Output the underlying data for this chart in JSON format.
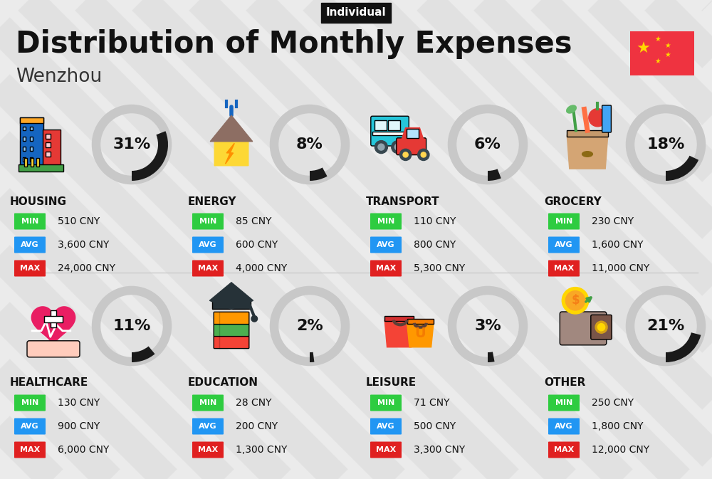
{
  "title": "Distribution of Monthly Expenses",
  "subtitle": "Individual",
  "city": "Wenzhou",
  "background_color": "#ebebeb",
  "categories": [
    {
      "name": "HOUSING",
      "percent": 31,
      "min": "510 CNY",
      "avg": "3,600 CNY",
      "max": "24,000 CNY",
      "row": 0,
      "col": 0
    },
    {
      "name": "ENERGY",
      "percent": 8,
      "min": "85 CNY",
      "avg": "600 CNY",
      "max": "4,000 CNY",
      "row": 0,
      "col": 1
    },
    {
      "name": "TRANSPORT",
      "percent": 6,
      "min": "110 CNY",
      "avg": "800 CNY",
      "max": "5,300 CNY",
      "row": 0,
      "col": 2
    },
    {
      "name": "GROCERY",
      "percent": 18,
      "min": "230 CNY",
      "avg": "1,600 CNY",
      "max": "11,000 CNY",
      "row": 0,
      "col": 3
    },
    {
      "name": "HEALTHCARE",
      "percent": 11,
      "min": "130 CNY",
      "avg": "900 CNY",
      "max": "6,000 CNY",
      "row": 1,
      "col": 0
    },
    {
      "name": "EDUCATION",
      "percent": 2,
      "min": "28 CNY",
      "avg": "200 CNY",
      "max": "1,300 CNY",
      "row": 1,
      "col": 1
    },
    {
      "name": "LEISURE",
      "percent": 3,
      "min": "71 CNY",
      "avg": "500 CNY",
      "max": "3,300 CNY",
      "row": 1,
      "col": 2
    },
    {
      "name": "OTHER",
      "percent": 21,
      "min": "250 CNY",
      "avg": "1,800 CNY",
      "max": "12,000 CNY",
      "row": 1,
      "col": 3
    }
  ],
  "min_color": "#2ecc40",
  "avg_color": "#2196F3",
  "max_color": "#e02020",
  "circle_dark": "#1a1a1a",
  "circle_gray": "#c8c8c8",
  "text_color": "#111111",
  "stripe_color": "#dedede"
}
